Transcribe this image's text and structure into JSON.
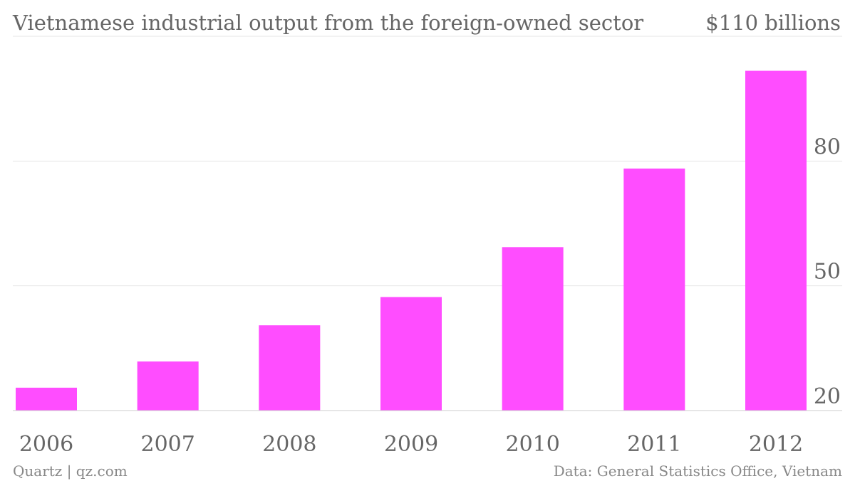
{
  "chart_data": {
    "type": "bar",
    "title": "Vietnamese industrial output from the foreign-owned sector",
    "ylabel": "$110 billions",
    "xlabel": "",
    "categories": [
      "2006",
      "2007",
      "2008",
      "2009",
      "2010",
      "2011",
      "2012"
    ],
    "values": [
      25.5,
      31.8,
      40.5,
      47.3,
      59.3,
      78.2,
      101.7
    ],
    "ylim": [
      20,
      110
    ],
    "yticks": [
      "80",
      "50",
      "20"
    ],
    "ytick_values": [
      80,
      50,
      20
    ],
    "bar_color": "#ff4dff",
    "grid": true,
    "y_axis_side": "right"
  },
  "footer": {
    "source_left": "Quartz | qz.com",
    "source_right": "Data: General Statistics Office, Vietnam"
  }
}
